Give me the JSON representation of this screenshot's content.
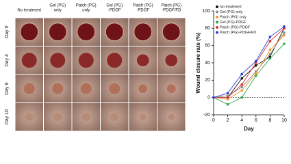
{
  "photo_grid": {
    "columns": [
      [
        "No treatment"
      ],
      [
        "Gel (PG)",
        "only"
      ],
      [
        "Patch (PG)",
        "only"
      ],
      [
        "Gel (PG)",
        "-PDGF"
      ],
      [
        "Patch (PG)",
        "-PDGF"
      ],
      [
        "Patch (PG)",
        "-PDGF/FD"
      ]
    ],
    "rows": [
      "Day 0",
      "Day 4",
      "Day 8",
      "Day 10"
    ]
  },
  "chart_data": {
    "type": "line",
    "y_label": "Wound closure rate (%)",
    "x_label": "Day",
    "x": [
      0,
      2,
      4,
      6,
      8,
      10
    ],
    "xlim": [
      0,
      10
    ],
    "xticks": [
      0,
      2,
      4,
      6,
      8,
      10
    ],
    "ylim": [
      -20,
      100
    ],
    "yticks": [
      -20,
      0,
      20,
      40,
      60,
      80,
      100
    ],
    "legend": "upper left",
    "series": [
      {
        "name": "No treatment",
        "color": "#111111",
        "values": [
          0,
          0,
          22,
          37,
          47,
          80
        ]
      },
      {
        "name": "Gel (PG) only",
        "color": "#8c8c8c",
        "values": [
          0,
          2,
          12,
          30,
          50,
          75
        ]
      },
      {
        "name": "Patch (PG) only",
        "color": "#f0962c",
        "values": [
          0,
          -2,
          8,
          28,
          55,
          72
        ]
      },
      {
        "name": "Gel (PG)-PDGF",
        "color": "#2ea84a",
        "values": [
          0,
          -8,
          0,
          25,
          45,
          62
        ]
      },
      {
        "name": "Patch (PG)-PDGF",
        "color": "#e0302a",
        "values": [
          0,
          0,
          15,
          40,
          65,
          80
        ]
      },
      {
        "name": "Patch (PG)-PDGF/FD",
        "color": "#2b3fd6",
        "values": [
          0,
          5,
          27,
          42,
          70,
          82
        ]
      }
    ]
  }
}
